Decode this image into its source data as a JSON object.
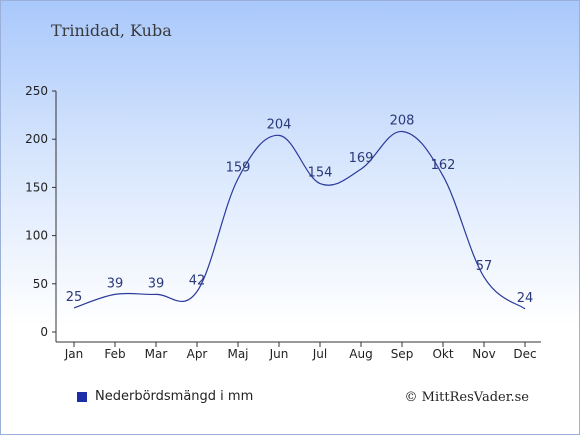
{
  "header": {
    "title": "Trinidad, Kuba"
  },
  "legend": {
    "label": "Nederbördsmängd i mm",
    "swatch_color": "#1b2fa8"
  },
  "credit": {
    "text": "© MittResVader.se"
  },
  "colors": {
    "line": "#2b3a9c",
    "axis": "#333333",
    "label": "#2a3a7a"
  },
  "chart_data": {
    "type": "line",
    "categories": [
      "Jan",
      "Feb",
      "Mar",
      "Apr",
      "Maj",
      "Jun",
      "Jul",
      "Aug",
      "Sep",
      "Okt",
      "Nov",
      "Dec"
    ],
    "series": [
      {
        "name": "Nederbördsmängd i mm",
        "values": [
          25,
          39,
          39,
          42,
          159,
          204,
          154,
          169,
          208,
          162,
          57,
          24
        ]
      }
    ],
    "ylim": [
      0,
      250
    ],
    "yticks": [
      0,
      50,
      100,
      150,
      200,
      250
    ],
    "grid": false,
    "legend_position": "bottom-left",
    "smooth": true
  }
}
